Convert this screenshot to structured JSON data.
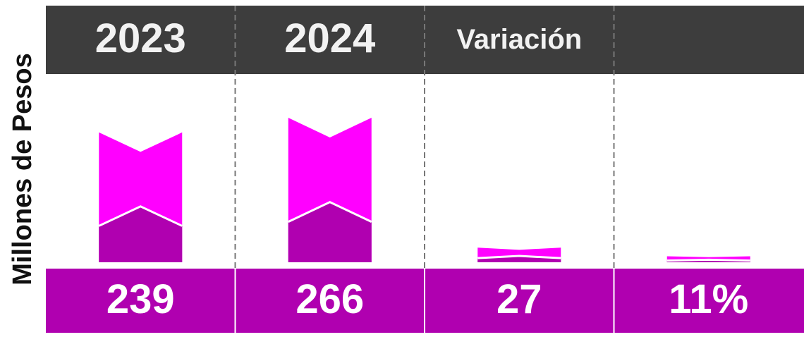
{
  "chart_data": {
    "type": "bar",
    "ylabel": "Millones de Pesos",
    "categories": [
      "2023",
      "2024",
      "Variación",
      null
    ],
    "values": [
      239,
      266,
      27,
      11
    ],
    "value_labels": [
      "239",
      "266",
      "27",
      "11%"
    ],
    "color": "#ff00ff",
    "lower_color": "#b000b0",
    "header_color": "#3d3d3d",
    "band_color": "#b000b0"
  }
}
